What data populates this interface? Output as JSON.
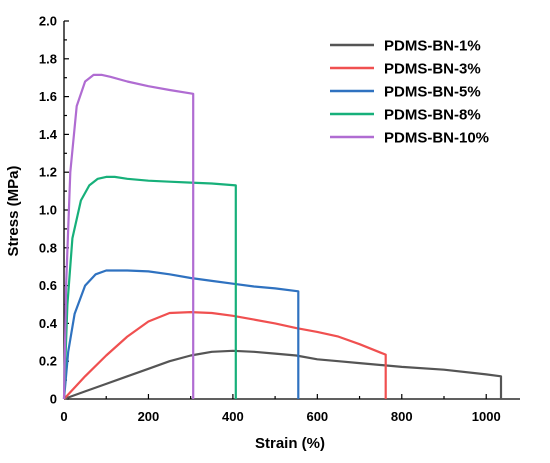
{
  "chart_data": {
    "type": "line",
    "title": "",
    "xlabel": "Strain (%)",
    "ylabel": "Stress (MPa)",
    "xlim": [
      0,
      1080
    ],
    "ylim": [
      0,
      2.0
    ],
    "xticks": [
      0,
      200,
      400,
      600,
      800,
      1000
    ],
    "yticks": [
      0,
      0.2,
      0.4,
      0.6,
      0.8,
      1.0,
      1.2,
      1.4,
      1.6,
      1.8,
      2.0
    ],
    "xtick_labels": [
      "0",
      "200",
      "400",
      "600",
      "800",
      "1000"
    ],
    "ytick_labels": [
      "0",
      "0.2",
      "0.4",
      "0.6",
      "0.8",
      "1.0",
      "1.2",
      "1.4",
      "1.6",
      "1.8",
      "2.0"
    ],
    "grid": false,
    "legend_position": "top-right",
    "series": [
      {
        "name": "PDMS-BN-1%",
        "color": "#555555",
        "x": [
          0,
          50,
          100,
          150,
          200,
          250,
          300,
          350,
          400,
          450,
          500,
          550,
          600,
          650,
          700,
          800,
          900,
          1000,
          1035,
          1035
        ],
        "y": [
          0,
          0.04,
          0.08,
          0.12,
          0.16,
          0.2,
          0.23,
          0.25,
          0.255,
          0.25,
          0.24,
          0.23,
          0.21,
          0.2,
          0.19,
          0.17,
          0.155,
          0.13,
          0.12,
          0
        ]
      },
      {
        "name": "PDMS-BN-3%",
        "color": "#f05050",
        "x": [
          0,
          50,
          100,
          150,
          200,
          250,
          300,
          350,
          400,
          450,
          500,
          550,
          600,
          650,
          700,
          750,
          762,
          762
        ],
        "y": [
          0,
          0.12,
          0.23,
          0.33,
          0.41,
          0.455,
          0.46,
          0.455,
          0.44,
          0.42,
          0.4,
          0.375,
          0.355,
          0.33,
          0.29,
          0.245,
          0.235,
          0
        ]
      },
      {
        "name": "PDMS-BN-5%",
        "color": "#2f72c0",
        "x": [
          0,
          10,
          25,
          50,
          75,
          100,
          150,
          200,
          250,
          300,
          350,
          400,
          450,
          500,
          555,
          555
        ],
        "y": [
          0,
          0.25,
          0.45,
          0.6,
          0.66,
          0.68,
          0.68,
          0.675,
          0.66,
          0.64,
          0.625,
          0.61,
          0.595,
          0.585,
          0.57,
          0
        ]
      },
      {
        "name": "PDMS-BN-8%",
        "color": "#17b07a",
        "x": [
          0,
          8,
          20,
          40,
          60,
          80,
          100,
          120,
          150,
          200,
          250,
          300,
          350,
          407,
          407
        ],
        "y": [
          0,
          0.5,
          0.85,
          1.05,
          1.13,
          1.165,
          1.175,
          1.175,
          1.165,
          1.155,
          1.15,
          1.145,
          1.14,
          1.13,
          0
        ]
      },
      {
        "name": "PDMS-BN-10%",
        "color": "#b06cd2",
        "x": [
          0,
          5,
          15,
          30,
          50,
          70,
          90,
          110,
          150,
          200,
          250,
          306,
          306
        ],
        "y": [
          0,
          0.6,
          1.2,
          1.55,
          1.68,
          1.715,
          1.715,
          1.705,
          1.68,
          1.655,
          1.635,
          1.615,
          0
        ]
      }
    ]
  }
}
